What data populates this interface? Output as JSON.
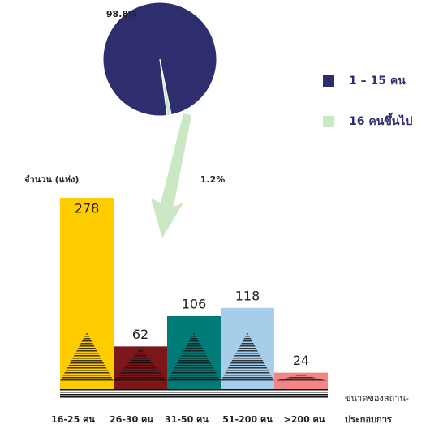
{
  "chart_data": [
    {
      "type": "pie",
      "series": [
        {
          "name": "1 – 15 คน",
          "color": "#2e2d6e"
        },
        {
          "name": "16 คนขึ้นไป",
          "color": "#cbe8c4"
        }
      ],
      "values": [
        98.8,
        1.2
      ],
      "value_labels": [
        "98.8%",
        "1.2%"
      ]
    },
    {
      "type": "bar",
      "y_label": "จำนวน (แห่ง)",
      "x_label": [
        "ขนาดของสถาน-",
        "ประกอบการ"
      ],
      "categories": [
        "16-25 คน",
        "26-30 คน",
        "31-50 คน",
        "51-200 คน",
        ">200 คน"
      ],
      "values": [
        278,
        62,
        106,
        118,
        24
      ],
      "colors": [
        "#ffcc00",
        "#7b1719",
        "#007b78",
        "#a6cdea",
        "#f28585"
      ]
    }
  ]
}
